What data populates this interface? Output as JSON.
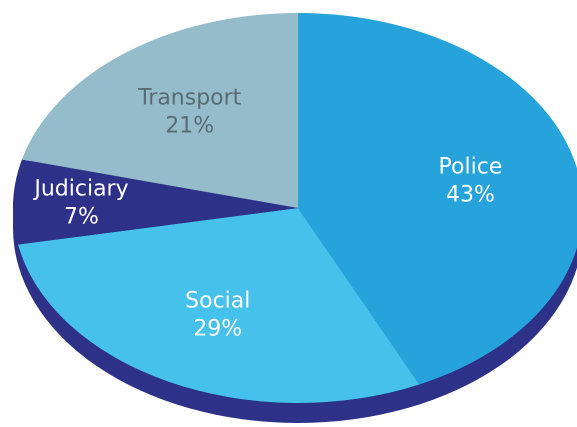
{
  "chart_data": {
    "type": "pie",
    "categories": [
      "Police",
      "Social",
      "Judiciary",
      "Transport"
    ],
    "values": [
      43,
      29,
      7,
      21
    ],
    "value_labels": [
      "43%",
      "29%",
      "7%",
      "21%"
    ],
    "colors": [
      "#27a3dc",
      "#45c1ec",
      "#2e3188",
      "#94bccb"
    ],
    "label_colors": [
      "#ffffff",
      "#ffffff",
      "#ffffff",
      "#5a6b72"
    ],
    "depth_color": "#2e3188"
  }
}
